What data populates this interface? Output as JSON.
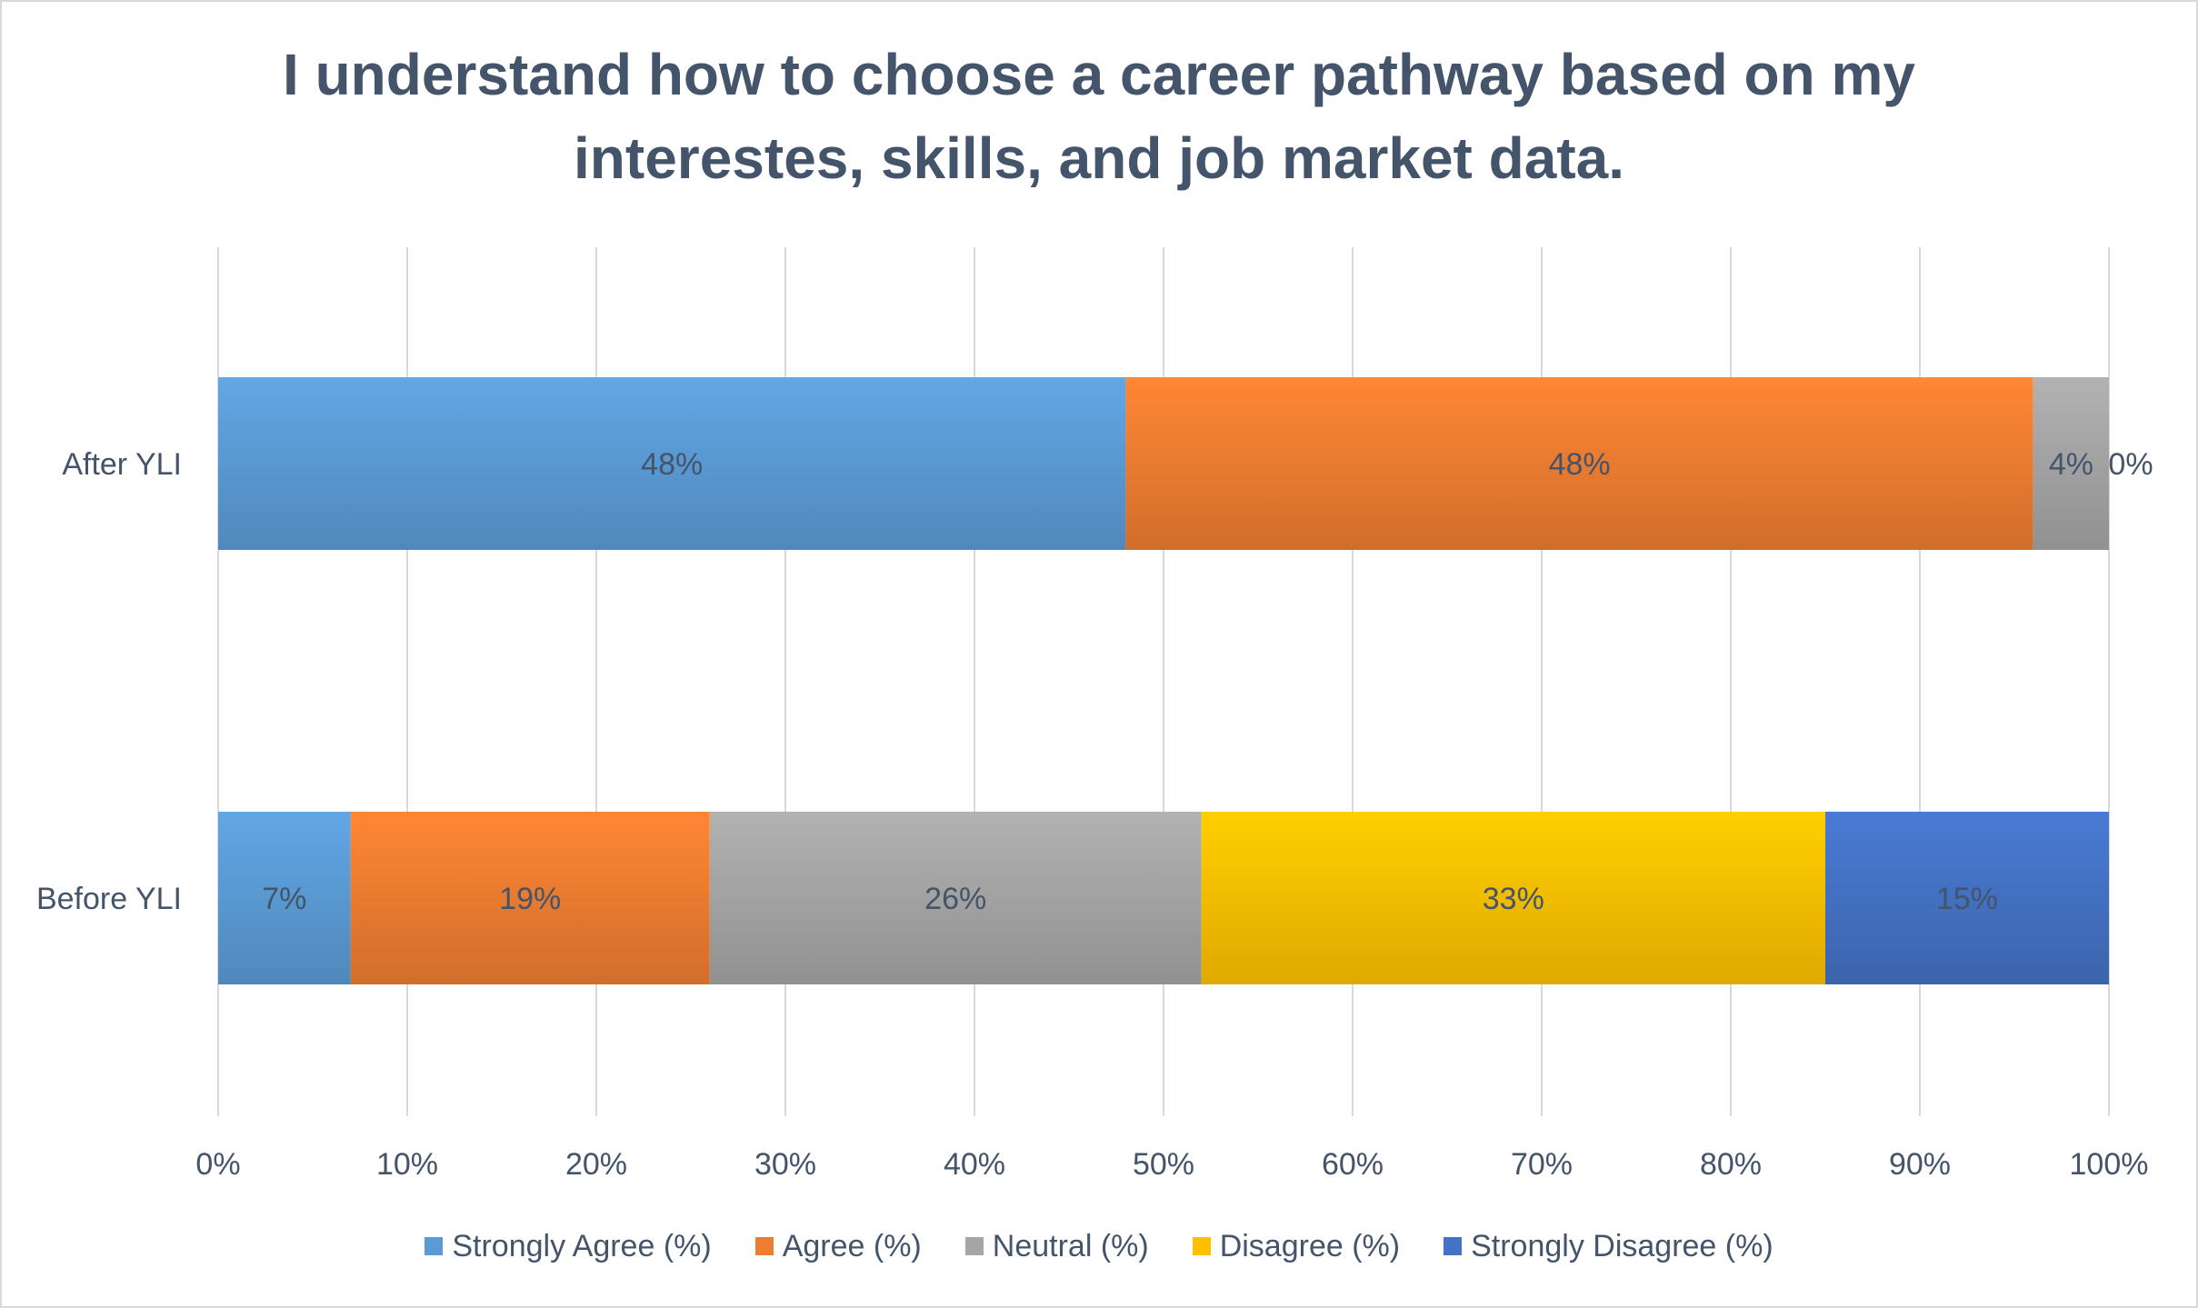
{
  "chart_data": {
    "type": "bar",
    "orientation": "horizontal",
    "stacked": "percent",
    "title_lines": [
      "I understand how to choose a career pathway based on my",
      "interestes, skills, and job market data."
    ],
    "categories": [
      "After YLI",
      "Before YLI"
    ],
    "series": [
      {
        "name": "Strongly Agree (%)",
        "color": "#5b9bd5",
        "values": [
          48,
          7
        ],
        "labels": [
          "48%",
          "7%"
        ]
      },
      {
        "name": "Agree (%)",
        "color": "#ed7d31",
        "values": [
          48,
          19
        ],
        "labels": [
          "48%",
          "19%"
        ]
      },
      {
        "name": "Neutral (%)",
        "color": "#a5a5a5",
        "values": [
          4,
          26
        ],
        "labels": [
          "4%",
          "26%"
        ]
      },
      {
        "name": "Disagree (%)",
        "color": "#ffc000",
        "values": [
          0,
          33
        ],
        "labels": [
          "0%",
          "33%"
        ]
      },
      {
        "name": "Strongly Disagree (%)",
        "color": "#4472c4",
        "values": [
          0,
          15
        ],
        "labels": [
          "",
          "15%"
        ]
      }
    ],
    "xlim": [
      0,
      100
    ],
    "xticks": [
      "0%",
      "10%",
      "20%",
      "30%",
      "40%",
      "50%",
      "60%",
      "70%",
      "80%",
      "90%",
      "100%"
    ],
    "grid": true,
    "legend_position": "bottom"
  }
}
